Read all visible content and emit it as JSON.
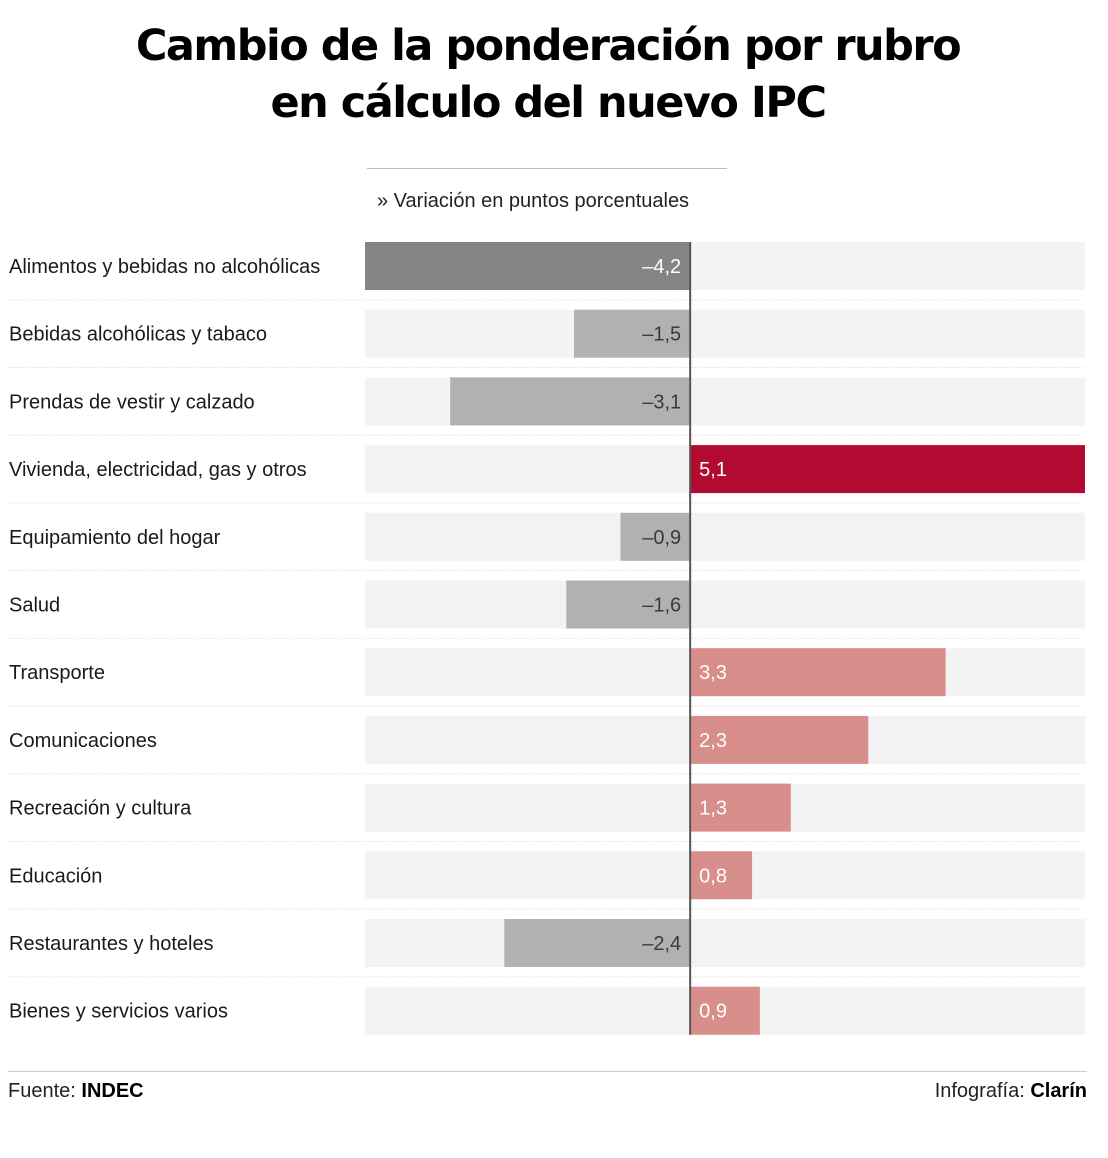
{
  "title": {
    "line1": "Cambio de la ponderación por rubro",
    "line2": "en cálculo del nuevo IPC"
  },
  "subtitle": "» Variación en puntos porcentuales",
  "footer": {
    "source_label": "Fuente:",
    "source_value": "INDEC",
    "credit_label": "Infografía:",
    "credit_value": "Clarín"
  },
  "colors": {
    "track": "#f3f3f3",
    "highlight_negative": "#858585",
    "negative": "#b1b1b1",
    "highlight_positive": "#b30a31",
    "positive": "#d88e8b",
    "axis": "#555555",
    "label_light": "#ffffff",
    "label_dark": "#3a3a3a"
  },
  "chart_data": {
    "type": "bar",
    "orientation": "horizontal",
    "xlim": [
      -4.2,
      5.1
    ],
    "categories": [
      "Alimentos y bebidas no alcohólicas",
      "Bebidas alcohólicas y tabaco",
      "Prendas de vestir y calzado",
      "Vivienda, electricidad, gas y otros",
      "Equipamiento del hogar",
      "Salud",
      "Transporte",
      "Comunicaciones",
      "Recreación y cultura",
      "Educación",
      "Restaurantes y hoteles",
      "Bienes y servicios varios"
    ],
    "values": [
      -4.2,
      -1.5,
      -3.1,
      5.1,
      -0.9,
      -1.6,
      3.3,
      2.3,
      1.3,
      0.8,
      -2.4,
      0.9
    ],
    "value_labels": [
      "–4,2",
      "–1,5",
      "–3,1",
      "5,1",
      "–0,9",
      "–1,6",
      "3,3",
      "2,3",
      "1,3",
      "0,8",
      "–2,4",
      "0,9"
    ],
    "highlighted": [
      "Alimentos y bebidas no alcohólicas",
      "Vivienda, electricidad, gas y otros"
    ],
    "grid": false,
    "legend": "none"
  }
}
